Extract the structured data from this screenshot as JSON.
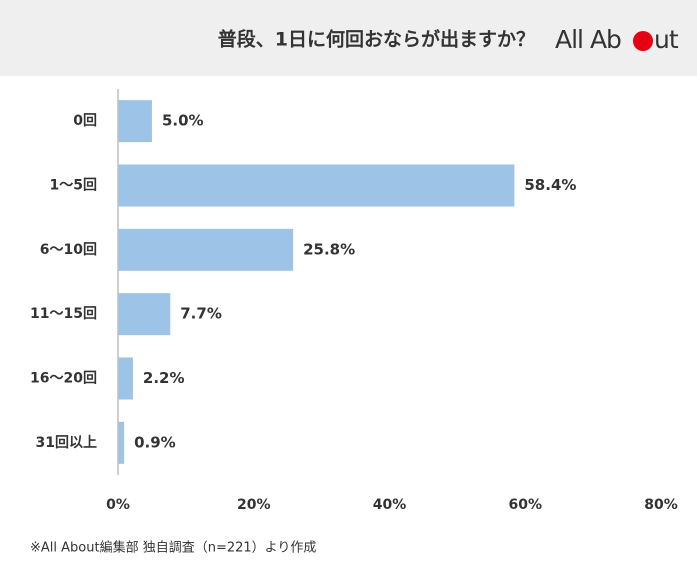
{
  "chart_data": {
    "type": "barh",
    "title": "普段、1日に何回おならが出ますか？",
    "logo": {
      "left": "All Ab",
      "right": "ut"
    },
    "categories": [
      "0回",
      "1〜5回",
      "6〜10回",
      "11〜15回",
      "16〜20回",
      "31回以上"
    ],
    "values": [
      5.0,
      58.4,
      25.8,
      7.7,
      2.2,
      0.9
    ],
    "value_labels": [
      "5.0%",
      "58.4%",
      "25.8%",
      "7.7%",
      "2.2%",
      "0.9%"
    ],
    "color": "#9dc3e6",
    "xlim": [
      0,
      80
    ],
    "xticks": [
      {
        "value": 0,
        "label": "0%"
      },
      {
        "value": 20,
        "label": "20%"
      },
      {
        "value": 40,
        "label": "40%"
      },
      {
        "value": 60,
        "label": "60%"
      },
      {
        "value": 80,
        "label": "80%"
      }
    ],
    "note": "※All About編集部 独自調査（n=221）より作成"
  }
}
